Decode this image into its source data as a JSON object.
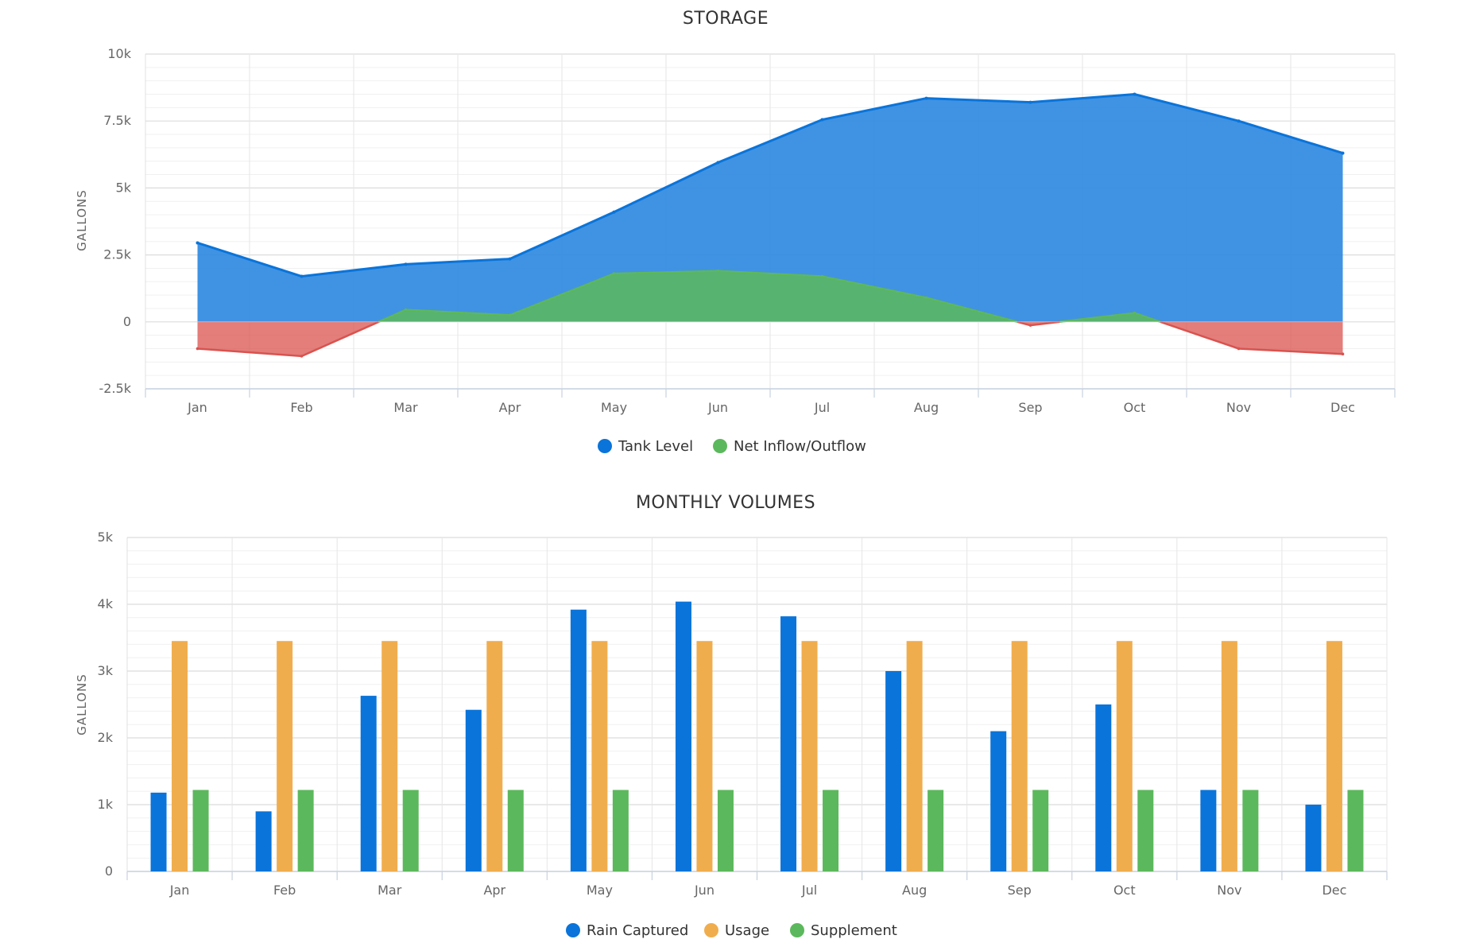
{
  "colors": {
    "blue": "#0a74da",
    "blue_fill": "#2b87e0",
    "green": "#5cb85c",
    "red": "#d9534f",
    "orange": "#f0ad4e",
    "grid": "#e6e6e6",
    "axis": "#c8d2e0"
  },
  "chart_data": [
    {
      "type": "area",
      "title": "STORAGE",
      "ylabel": "GALLONS",
      "categories": [
        "Jan",
        "Feb",
        "Mar",
        "Apr",
        "May",
        "Jun",
        "Jul",
        "Aug",
        "Sep",
        "Oct",
        "Nov",
        "Dec"
      ],
      "ylim": [
        -2500,
        10000
      ],
      "yticks": [
        -2500,
        0,
        2500,
        5000,
        7500,
        10000
      ],
      "ytick_labels": [
        "-2.5k",
        "0",
        "2.5k",
        "5k",
        "7.5k",
        "10k"
      ],
      "grid": true,
      "legend_position": "bottom",
      "series": [
        {
          "name": "Tank Level",
          "color": "#0a74da",
          "values": [
            2950,
            1700,
            2150,
            2350,
            4100,
            5950,
            7550,
            8350,
            8200,
            8500,
            7500,
            6300
          ]
        },
        {
          "name": "Net Inflow/Outflow",
          "color": "#5cb85c",
          "negative_color": "#d9534f",
          "values": [
            -1000,
            -1280,
            450,
            250,
            1800,
            1900,
            1700,
            900,
            -130,
            330,
            -1000,
            -1200
          ]
        }
      ]
    },
    {
      "type": "bar",
      "title": "MONTHLY VOLUMES",
      "ylabel": "GALLONS",
      "categories": [
        "Jan",
        "Feb",
        "Mar",
        "Apr",
        "May",
        "Jun",
        "Jul",
        "Aug",
        "Sep",
        "Oct",
        "Nov",
        "Dec"
      ],
      "ylim": [
        0,
        5000
      ],
      "yticks": [
        0,
        1000,
        2000,
        3000,
        4000,
        5000
      ],
      "ytick_labels": [
        "0",
        "1k",
        "2k",
        "3k",
        "4k",
        "5k"
      ],
      "grid": true,
      "legend_position": "bottom",
      "series": [
        {
          "name": "Rain Captured",
          "color": "#0a74da",
          "values": [
            1180,
            900,
            2630,
            2420,
            3920,
            4040,
            3820,
            3000,
            2100,
            2500,
            1220,
            1000
          ]
        },
        {
          "name": "Usage",
          "color": "#f0ad4e",
          "values": [
            3450,
            3450,
            3450,
            3450,
            3450,
            3450,
            3450,
            3450,
            3450,
            3450,
            3450,
            3450
          ]
        },
        {
          "name": "Supplement",
          "color": "#5cb85c",
          "values": [
            1220,
            1220,
            1220,
            1220,
            1220,
            1220,
            1220,
            1220,
            1220,
            1220,
            1220,
            1220
          ]
        }
      ]
    }
  ]
}
